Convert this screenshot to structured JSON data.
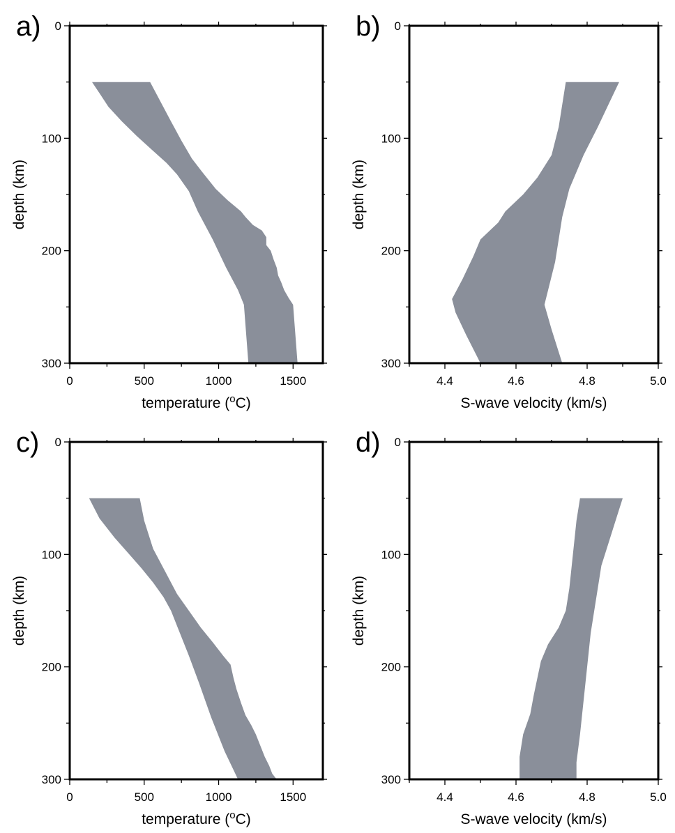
{
  "colors": {
    "band": "#8a8f9a",
    "axis": "#000000"
  },
  "chart_data": [
    {
      "type": "area",
      "panel_label": "a)",
      "xlabel_main": "temperature (",
      "xlabel_sup": "o",
      "xlabel_tail": "C)",
      "ylabel": "depth (km)",
      "xlim": [
        0,
        1700
      ],
      "ylim": [
        300,
        0
      ],
      "y_inverted": true,
      "xticks": [
        0,
        500,
        1000,
        1500
      ],
      "yticks": [
        0,
        100,
        200,
        300
      ],
      "band_left": [
        [
          150,
          50
        ],
        [
          200,
          60
        ],
        [
          260,
          72
        ],
        [
          350,
          85
        ],
        [
          450,
          98
        ],
        [
          550,
          110
        ],
        [
          650,
          122
        ],
        [
          720,
          132
        ],
        [
          800,
          147
        ],
        [
          860,
          165
        ],
        [
          960,
          190
        ],
        [
          1050,
          215
        ],
        [
          1130,
          235
        ],
        [
          1170,
          248
        ],
        [
          1200,
          300
        ]
      ],
      "band_right": [
        [
          540,
          50
        ],
        [
          600,
          65
        ],
        [
          680,
          85
        ],
        [
          750,
          102
        ],
        [
          820,
          118
        ],
        [
          890,
          130
        ],
        [
          980,
          145
        ],
        [
          1060,
          155
        ],
        [
          1150,
          165
        ],
        [
          1180,
          170
        ],
        [
          1230,
          177
        ],
        [
          1290,
          182
        ],
        [
          1320,
          188
        ],
        [
          1320,
          195
        ],
        [
          1350,
          200
        ],
        [
          1370,
          208
        ],
        [
          1390,
          215
        ],
        [
          1400,
          222
        ],
        [
          1420,
          228
        ],
        [
          1440,
          235
        ],
        [
          1470,
          242
        ],
        [
          1500,
          248
        ],
        [
          1530,
          300
        ]
      ]
    },
    {
      "type": "area",
      "panel_label": "b)",
      "xlabel": "S-wave velocity (km/s)",
      "ylabel": "depth (km)",
      "xlim": [
        4.3,
        5.0
      ],
      "ylim": [
        300,
        0
      ],
      "y_inverted": true,
      "xticks": [
        4.4,
        4.6,
        4.8,
        5.0
      ],
      "xtick_labels": [
        "4.4",
        "4.6",
        "4.8",
        "5.0"
      ],
      "yticks": [
        0,
        100,
        200,
        300
      ],
      "band_left": [
        [
          4.74,
          50
        ],
        [
          4.72,
          90
        ],
        [
          4.7,
          115
        ],
        [
          4.66,
          135
        ],
        [
          4.62,
          150
        ],
        [
          4.57,
          165
        ],
        [
          4.55,
          175
        ],
        [
          4.5,
          190
        ],
        [
          4.48,
          205
        ],
        [
          4.45,
          225
        ],
        [
          4.42,
          243
        ],
        [
          4.43,
          255
        ],
        [
          4.46,
          275
        ],
        [
          4.5,
          300
        ]
      ],
      "band_right": [
        [
          4.89,
          50
        ],
        [
          4.86,
          70
        ],
        [
          4.83,
          90
        ],
        [
          4.79,
          115
        ],
        [
          4.75,
          145
        ],
        [
          4.73,
          170
        ],
        [
          4.71,
          210
        ],
        [
          4.68,
          248
        ],
        [
          4.7,
          270
        ],
        [
          4.73,
          300
        ]
      ]
    },
    {
      "type": "area",
      "panel_label": "c)",
      "xlabel_main": "temperature (",
      "xlabel_sup": "o",
      "xlabel_tail": "C)",
      "ylabel": "depth (km)",
      "xlim": [
        0,
        1700
      ],
      "ylim": [
        300,
        0
      ],
      "y_inverted": true,
      "xticks": [
        0,
        500,
        1000,
        1500
      ],
      "yticks": [
        0,
        100,
        200,
        300
      ],
      "band_left": [
        [
          130,
          50
        ],
        [
          200,
          68
        ],
        [
          300,
          85
        ],
        [
          400,
          100
        ],
        [
          480,
          112
        ],
        [
          560,
          125
        ],
        [
          630,
          138
        ],
        [
          680,
          150
        ],
        [
          740,
          170
        ],
        [
          800,
          190
        ],
        [
          870,
          215
        ],
        [
          950,
          245
        ],
        [
          1040,
          275
        ],
        [
          1130,
          300
        ]
      ],
      "band_right": [
        [
          470,
          50
        ],
        [
          500,
          70
        ],
        [
          560,
          95
        ],
        [
          640,
          115
        ],
        [
          720,
          135
        ],
        [
          800,
          150
        ],
        [
          880,
          165
        ],
        [
          960,
          178
        ],
        [
          1030,
          190
        ],
        [
          1080,
          198
        ],
        [
          1100,
          210
        ],
        [
          1120,
          220
        ],
        [
          1150,
          232
        ],
        [
          1180,
          243
        ],
        [
          1220,
          252
        ],
        [
          1250,
          260
        ],
        [
          1280,
          270
        ],
        [
          1310,
          280
        ],
        [
          1340,
          288
        ],
        [
          1360,
          295
        ],
        [
          1390,
          300
        ]
      ]
    },
    {
      "type": "area",
      "panel_label": "d)",
      "xlabel": "S-wave velocity (km/s)",
      "ylabel": "depth (km)",
      "xlim": [
        4.3,
        5.0
      ],
      "ylim": [
        300,
        0
      ],
      "y_inverted": true,
      "xticks": [
        4.4,
        4.6,
        4.8,
        5.0
      ],
      "xtick_labels": [
        "4.4",
        "4.6",
        "4.8",
        "5.0"
      ],
      "yticks": [
        0,
        100,
        200,
        300
      ],
      "band_left": [
        [
          4.78,
          50
        ],
        [
          4.77,
          70
        ],
        [
          4.76,
          100
        ],
        [
          4.75,
          130
        ],
        [
          4.74,
          150
        ],
        [
          4.72,
          165
        ],
        [
          4.69,
          180
        ],
        [
          4.67,
          195
        ],
        [
          4.66,
          210
        ],
        [
          4.65,
          225
        ],
        [
          4.64,
          242
        ],
        [
          4.62,
          260
        ],
        [
          4.61,
          280
        ],
        [
          4.61,
          300
        ]
      ],
      "band_right": [
        [
          4.9,
          50
        ],
        [
          4.88,
          70
        ],
        [
          4.86,
          90
        ],
        [
          4.84,
          110
        ],
        [
          4.83,
          130
        ],
        [
          4.82,
          150
        ],
        [
          4.81,
          170
        ],
        [
          4.8,
          200
        ],
        [
          4.79,
          230
        ],
        [
          4.78,
          260
        ],
        [
          4.77,
          285
        ],
        [
          4.77,
          300
        ]
      ]
    }
  ]
}
